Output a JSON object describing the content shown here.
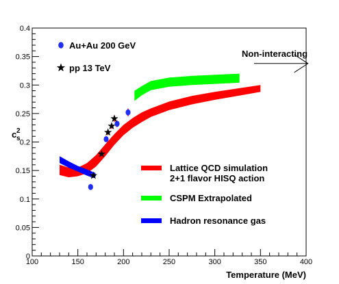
{
  "chart_data": {
    "type": "scatter",
    "xlabel": "Temperature (MeV)",
    "ylabel_main": "c",
    "ylabel_sub": "s",
    "ylabel_sup": "2",
    "xlim": [
      100,
      400
    ],
    "ylim": [
      0,
      0.4
    ],
    "x_ticks": [
      100,
      150,
      200,
      250,
      300,
      350,
      400
    ],
    "x_tick_labels": [
      "100",
      "150",
      "200",
      "250",
      "300",
      "350",
      "400"
    ],
    "y_ticks": [
      0,
      0.05,
      0.1,
      0.15,
      0.2,
      0.25,
      0.3,
      0.35,
      0.4
    ],
    "y_tick_labels": [
      "0",
      "0.05",
      "0.1",
      "0.15",
      "0.2",
      "0.25",
      "0.3",
      "0.35",
      "0.4"
    ],
    "grid": false,
    "annotation": {
      "text": "Non-interacting",
      "y": 0.333,
      "x_from": 343,
      "x_to": 402
    },
    "points_legend": [
      {
        "label": "Au+Au 200 GeV",
        "marker": "circle",
        "color": "#1f2ef0"
      },
      {
        "label": "pp 13 TeV",
        "marker": "star",
        "color": "#000000"
      }
    ],
    "series": [
      {
        "name": "Au+Au 200 GeV",
        "kind": "points",
        "marker": "circle",
        "color": "#1f2ef0",
        "points": [
          {
            "x": 164,
            "y": 0.121,
            "err": 0.0
          },
          {
            "x": 167,
            "y": 0.142,
            "err": 0.004
          },
          {
            "x": 181,
            "y": 0.205,
            "err": 0.005
          },
          {
            "x": 193,
            "y": 0.232,
            "err": 0.006
          },
          {
            "x": 205,
            "y": 0.252,
            "err": 0.007
          }
        ]
      },
      {
        "name": "pp 13 TeV",
        "kind": "points",
        "marker": "star",
        "color": "#000000",
        "points": [
          {
            "x": 167,
            "y": 0.141,
            "err": 0.003
          },
          {
            "x": 176,
            "y": 0.179,
            "err": 0.004
          },
          {
            "x": 183,
            "y": 0.217,
            "err": 0.005
          },
          {
            "x": 187,
            "y": 0.228,
            "err": 0.005
          },
          {
            "x": 190,
            "y": 0.241,
            "err": 0.006
          }
        ]
      },
      {
        "name": "Lattice QCD simulation 2+1 flavor HISQ action",
        "kind": "band",
        "color": "#ff0000",
        "x": [
          130,
          140,
          150,
          160,
          170,
          180,
          190,
          200,
          210,
          220,
          230,
          250,
          275,
          300,
          325,
          350
        ],
        "lower": [
          0.142,
          0.138,
          0.14,
          0.145,
          0.157,
          0.175,
          0.195,
          0.212,
          0.225,
          0.235,
          0.244,
          0.256,
          0.266,
          0.274,
          0.281,
          0.288
        ],
        "upper": [
          0.16,
          0.155,
          0.155,
          0.163,
          0.177,
          0.196,
          0.214,
          0.23,
          0.242,
          0.252,
          0.259,
          0.271,
          0.281,
          0.288,
          0.294,
          0.3
        ]
      },
      {
        "name": "CSPM Extrapolated",
        "kind": "band",
        "color": "#00ff00",
        "x": [
          212,
          220,
          230,
          250,
          275,
          300,
          327
        ],
        "lower": [
          0.272,
          0.282,
          0.291,
          0.297,
          0.3,
          0.302,
          0.304
        ],
        "upper": [
          0.29,
          0.298,
          0.307,
          0.313,
          0.316,
          0.318,
          0.32
        ]
      },
      {
        "name": "Hadron resonance gas",
        "kind": "band",
        "color": "#0000ff",
        "x": [
          130,
          140,
          150,
          160,
          167
        ],
        "lower": [
          0.163,
          0.155,
          0.148,
          0.141,
          0.137
        ],
        "upper": [
          0.175,
          0.166,
          0.158,
          0.152,
          0.147
        ]
      }
    ],
    "legend": {
      "placement": "bottom-right",
      "entries": [
        {
          "line1": "Lattice QCD simulation",
          "line2": "2+1 flavor HISQ action",
          "color": "#ff0000"
        },
        {
          "line1": "CSPM Extrapolated",
          "line2": "",
          "color": "#00ff00"
        },
        {
          "line1": "Hadron resonance gas",
          "line2": "",
          "color": "#0000ff"
        }
      ]
    }
  }
}
